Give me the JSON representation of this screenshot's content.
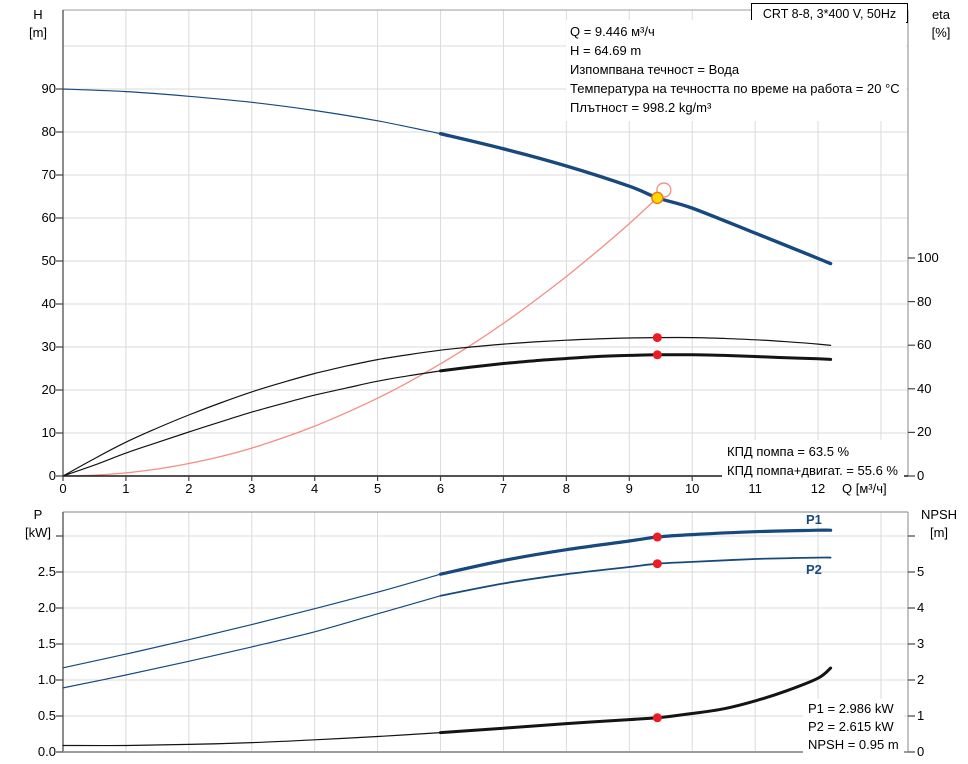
{
  "title_box": {
    "label": "CRT 8-8, 3*400 V, 50Hz"
  },
  "info_lines": [
    "Q = 9.446 м³/ч",
    "H = 64.69 m",
    "Изпомпвана течност = Вода",
    "Температура на течността по време на работа = 20 °C",
    "Плътност = 998.2 kg/m³"
  ],
  "upper_chart": {
    "left_axis": {
      "title": "H",
      "unit": "[m]",
      "ticks": [
        "0",
        "10",
        "20",
        "30",
        "40",
        "50",
        "60",
        "70",
        "80",
        "90"
      ]
    },
    "right_axis": {
      "title": "eta",
      "unit": "[%]",
      "ticks": [
        "0",
        "20",
        "40",
        "60",
        "80",
        "100"
      ]
    },
    "x_axis": {
      "unit_label": "Q [м³/ч]",
      "ticks": [
        "0",
        "1",
        "2",
        "3",
        "4",
        "5",
        "6",
        "7",
        "8",
        "9",
        "10",
        "11",
        "12"
      ]
    },
    "annotations": [
      "КПД помпа = 63.5 %",
      "КПД помпа+двигат. = 55.6 %"
    ]
  },
  "lower_chart": {
    "left_axis": {
      "title": "P",
      "unit": "[kW]",
      "ticks": [
        "0.0",
        "0.5",
        "1.0",
        "1.5",
        "2.0",
        "2.5"
      ]
    },
    "right_axis": {
      "title": "NPSH",
      "unit": "[m]",
      "ticks": [
        "0",
        "1",
        "2",
        "3",
        "4",
        "5"
      ]
    },
    "curve_labels": {
      "p1": "P1",
      "p2": "P2"
    },
    "legend": [
      "P1 = 2.986 kW",
      "P2 = 2.615 kW",
      "NPSH = 0.95 m"
    ]
  },
  "colors": {
    "navy": "#17497E",
    "salmon": "#F28E86",
    "black": "#141414",
    "red_dot": "#EC1C24",
    "duty_fill": "#FFD900",
    "duty_stroke": "#F07818",
    "grid": "#DBDBDB",
    "border": "#9C9C9C",
    "axis_dark": "#1A1A1A"
  },
  "chart_data": [
    {
      "type": "line",
      "title": "CRT 8-8, 3*400 V, 50Hz",
      "xlabel": "Q [м³/ч]",
      "x_range": [
        0,
        13.4
      ],
      "y_left": {
        "label": "H [m]",
        "range": [
          0,
          108
        ]
      },
      "y_right": {
        "label": "eta [%]",
        "range": [
          0,
          100
        ]
      },
      "grid": true,
      "series": [
        {
          "name": "system-curve",
          "axis": "H",
          "color": "salmon",
          "width": 1.3,
          "points": [
            [
              0,
              0
            ],
            [
              0.5,
              0.18
            ],
            [
              1,
              0.73
            ],
            [
              1.5,
              1.63
            ],
            [
              2,
              2.9
            ],
            [
              2.5,
              4.5
            ],
            [
              3,
              6.5
            ],
            [
              3.5,
              8.9
            ],
            [
              4,
              11.6
            ],
            [
              4.5,
              14.7
            ],
            [
              5,
              18.1
            ],
            [
              5.5,
              21.9
            ],
            [
              6,
              26.1
            ],
            [
              6.5,
              30.6
            ],
            [
              7,
              35.5
            ],
            [
              7.5,
              40.8
            ],
            [
              8,
              46.4
            ],
            [
              8.5,
              52.4
            ],
            [
              9,
              58.7
            ],
            [
              9.446,
              64.69
            ]
          ]
        },
        {
          "name": "eta-pump",
          "axis": "eta",
          "color": "black",
          "width": 1.2,
          "points": [
            [
              0,
              0
            ],
            [
              0.5,
              8
            ],
            [
              1,
              15.5
            ],
            [
              1.5,
              22
            ],
            [
              2,
              28
            ],
            [
              2.5,
              33.5
            ],
            [
              3,
              38.6
            ],
            [
              3.5,
              43
            ],
            [
              4,
              47
            ],
            [
              4.5,
              50.4
            ],
            [
              5,
              53.4
            ],
            [
              5.5,
              55.7
            ],
            [
              6,
              57.7
            ],
            [
              6.5,
              59.2
            ],
            [
              7,
              60.5
            ],
            [
              7.5,
              61.5
            ],
            [
              8,
              62.3
            ],
            [
              8.5,
              62.9
            ],
            [
              9,
              63.3
            ],
            [
              9.446,
              63.5
            ],
            [
              10,
              63.5
            ],
            [
              10.5,
              63.1
            ],
            [
              11,
              62.5
            ],
            [
              11.5,
              61.6
            ],
            [
              12,
              60.5
            ],
            [
              12.2,
              59.9
            ]
          ]
        },
        {
          "name": "eta-pump-motor",
          "axis": "eta",
          "color": "black",
          "width": 1.2,
          "width_thick": 3,
          "thick_from": 6,
          "points": [
            [
              0,
              0
            ],
            [
              0.5,
              5
            ],
            [
              1,
              10.5
            ],
            [
              1.5,
              15.4
            ],
            [
              2,
              20.2
            ],
            [
              2.5,
              24.8
            ],
            [
              3,
              29.3
            ],
            [
              3.5,
              33.3
            ],
            [
              4,
              37.1
            ],
            [
              4.5,
              40.3
            ],
            [
              5,
              43.5
            ],
            [
              5.5,
              46
            ],
            [
              6,
              48.2
            ],
            [
              6.5,
              50
            ],
            [
              7,
              51.6
            ],
            [
              7.5,
              52.9
            ],
            [
              8,
              53.9
            ],
            [
              8.5,
              54.8
            ],
            [
              9,
              55.3
            ],
            [
              9.446,
              55.6
            ],
            [
              10,
              55.6
            ],
            [
              10.5,
              55.3
            ],
            [
              11,
              54.8
            ],
            [
              11.5,
              54.2
            ],
            [
              12,
              53.8
            ],
            [
              12.2,
              53.5
            ]
          ]
        },
        {
          "name": "QH",
          "axis": "H",
          "color": "navy",
          "width": 1.2,
          "width_thick": 3.4,
          "thick_from": 6,
          "points": [
            [
              0,
              90
            ],
            [
              1,
              89.4
            ],
            [
              2,
              88.3
            ],
            [
              3,
              86.9
            ],
            [
              4,
              85.0
            ],
            [
              5,
              82.6
            ],
            [
              6,
              79.6
            ],
            [
              7,
              76.1
            ],
            [
              8,
              72.1
            ],
            [
              9,
              67.4
            ],
            [
              9.446,
              64.69
            ],
            [
              10,
              62.3
            ],
            [
              11,
              56.5
            ],
            [
              12,
              50.6
            ],
            [
              12.2,
              49.4
            ]
          ]
        }
      ],
      "markers": [
        {
          "type": "ring",
          "axis": "H",
          "q": 9.55,
          "value": 66.5
        },
        {
          "type": "duty",
          "axis": "H",
          "q": 9.446,
          "value": 64.69
        },
        {
          "type": "dot",
          "axis": "eta",
          "q": 9.446,
          "value": 63.5
        },
        {
          "type": "dot",
          "axis": "eta",
          "q": 9.446,
          "value": 55.6
        }
      ]
    },
    {
      "type": "line",
      "title": "",
      "xlabel": "",
      "x_range": [
        0,
        13.4
      ],
      "y_left": {
        "label": "P [kW]",
        "range": [
          0,
          3.33
        ]
      },
      "y_right": {
        "label": "NPSH [m]",
        "range": [
          0,
          6.67
        ]
      },
      "grid": true,
      "series": [
        {
          "name": "NPSH",
          "axis": "NPSH",
          "color": "black",
          "width": 1.2,
          "width_thick": 3,
          "thick_from": 6,
          "points": [
            [
              0,
              0.18
            ],
            [
              1,
              0.18
            ],
            [
              2,
              0.21
            ],
            [
              3,
              0.26
            ],
            [
              4,
              0.34
            ],
            [
              5,
              0.43
            ],
            [
              6,
              0.54
            ],
            [
              7,
              0.66
            ],
            [
              8,
              0.79
            ],
            [
              9,
              0.9
            ],
            [
              9.446,
              0.95
            ],
            [
              10,
              1.07
            ],
            [
              10.5,
              1.2
            ],
            [
              11,
              1.42
            ],
            [
              11.5,
              1.7
            ],
            [
              12,
              2.05
            ],
            [
              12.2,
              2.33
            ]
          ]
        },
        {
          "name": "P2",
          "axis": "P",
          "color": "navy",
          "width": 1.2,
          "width_thick": 1.8,
          "thick_from": 6,
          "points": [
            [
              0,
              0.89
            ],
            [
              1,
              1.07
            ],
            [
              2,
              1.26
            ],
            [
              3,
              1.46
            ],
            [
              4,
              1.67
            ],
            [
              5,
              1.92
            ],
            [
              6,
              2.17
            ],
            [
              7,
              2.34
            ],
            [
              8,
              2.47
            ],
            [
              9,
              2.57
            ],
            [
              9.446,
              2.615
            ],
            [
              10,
              2.64
            ],
            [
              11,
              2.68
            ],
            [
              12,
              2.7
            ],
            [
              12.2,
              2.7
            ]
          ]
        },
        {
          "name": "P1",
          "axis": "P",
          "color": "navy",
          "width": 1.2,
          "width_thick": 3.2,
          "thick_from": 6,
          "points": [
            [
              0,
              1.17
            ],
            [
              1,
              1.36
            ],
            [
              2,
              1.56
            ],
            [
              3,
              1.77
            ],
            [
              4,
              1.99
            ],
            [
              5,
              2.22
            ],
            [
              6,
              2.47
            ],
            [
              7,
              2.66
            ],
            [
              8,
              2.81
            ],
            [
              9,
              2.93
            ],
            [
              9.446,
              2.986
            ],
            [
              10,
              3.02
            ],
            [
              11,
              3.06
            ],
            [
              12,
              3.08
            ],
            [
              12.2,
              3.08
            ]
          ]
        }
      ],
      "markers": [
        {
          "type": "dot",
          "axis": "P",
          "q": 9.446,
          "value": 2.986
        },
        {
          "type": "dot",
          "axis": "P",
          "q": 9.446,
          "value": 2.615
        },
        {
          "type": "dot",
          "axis": "NPSH",
          "q": 9.446,
          "value": 0.95
        }
      ]
    }
  ]
}
